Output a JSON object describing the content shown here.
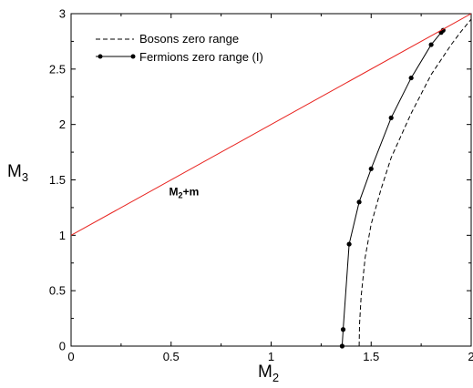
{
  "chart_data": {
    "type": "line",
    "xlabel": "M",
    "xlabel_sub": "2",
    "ylabel": "M",
    "ylabel_sub": "3",
    "xlim": [
      0,
      2
    ],
    "ylim": [
      0,
      3
    ],
    "x_ticks": [
      0,
      0.5,
      1,
      1.5,
      2
    ],
    "x_tick_labels": [
      "0",
      "0.5",
      "1",
      "1.5",
      "2"
    ],
    "y_ticks": [
      0,
      0.5,
      1,
      1.5,
      2,
      2.5,
      3
    ],
    "y_tick_labels": [
      "0",
      "0.5",
      "1",
      "1.5",
      "2",
      "2.5",
      "3"
    ],
    "grid": false,
    "legend_position": "top-left",
    "annotation": {
      "text": "M",
      "sub": "2",
      "suffix": "+m",
      "x": 0.49,
      "y": 1.36
    },
    "colors": {
      "threshold": "#e8231f",
      "bosons": "#000000",
      "fermions": "#000000"
    },
    "series": [
      {
        "name": "Bosons zero range",
        "style": "dashed",
        "x": [
          1.44,
          1.442,
          1.45,
          1.47,
          1.5,
          1.55,
          1.6,
          1.7,
          1.8,
          1.9,
          1.95,
          2.0
        ],
        "y": [
          0,
          0.2,
          0.45,
          0.8,
          1.1,
          1.42,
          1.7,
          2.1,
          2.45,
          2.72,
          2.84,
          2.95
        ]
      },
      {
        "name": "Fermions zero range (I)",
        "style": "solid-markers",
        "x": [
          1.355,
          1.36,
          1.39,
          1.44,
          1.5,
          1.6,
          1.7,
          1.8,
          1.85,
          1.86
        ],
        "y": [
          0,
          0.15,
          0.92,
          1.3,
          1.6,
          2.06,
          2.42,
          2.72,
          2.83,
          2.85
        ]
      },
      {
        "name": "",
        "style": "threshold",
        "x": [
          0,
          2
        ],
        "y": [
          1,
          3
        ]
      }
    ]
  }
}
